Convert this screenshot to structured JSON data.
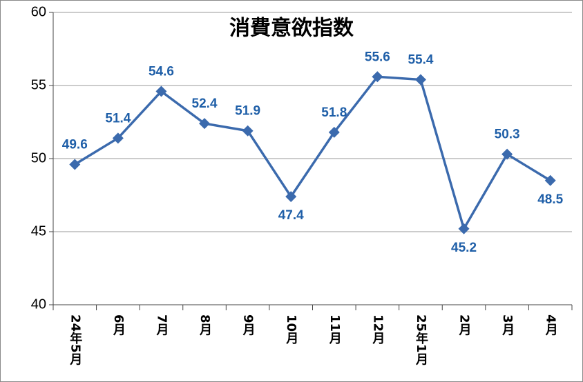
{
  "chart_data": {
    "type": "line",
    "title": "消費意欲指数",
    "categories": [
      "24年5月",
      "6月",
      "7月",
      "8月",
      "9月",
      "10月",
      "11月",
      "12月",
      "25年1月",
      "2月",
      "3月",
      "4月"
    ],
    "values": [
      49.6,
      51.4,
      54.6,
      52.4,
      51.9,
      47.4,
      51.8,
      55.6,
      55.4,
      45.2,
      50.3,
      48.5
    ],
    "color": "#3b6aad",
    "label_color": "#1f5fa8",
    "ylim": [
      40,
      60
    ],
    "yticks": [
      40,
      45,
      50,
      55,
      60
    ],
    "grid": true
  }
}
